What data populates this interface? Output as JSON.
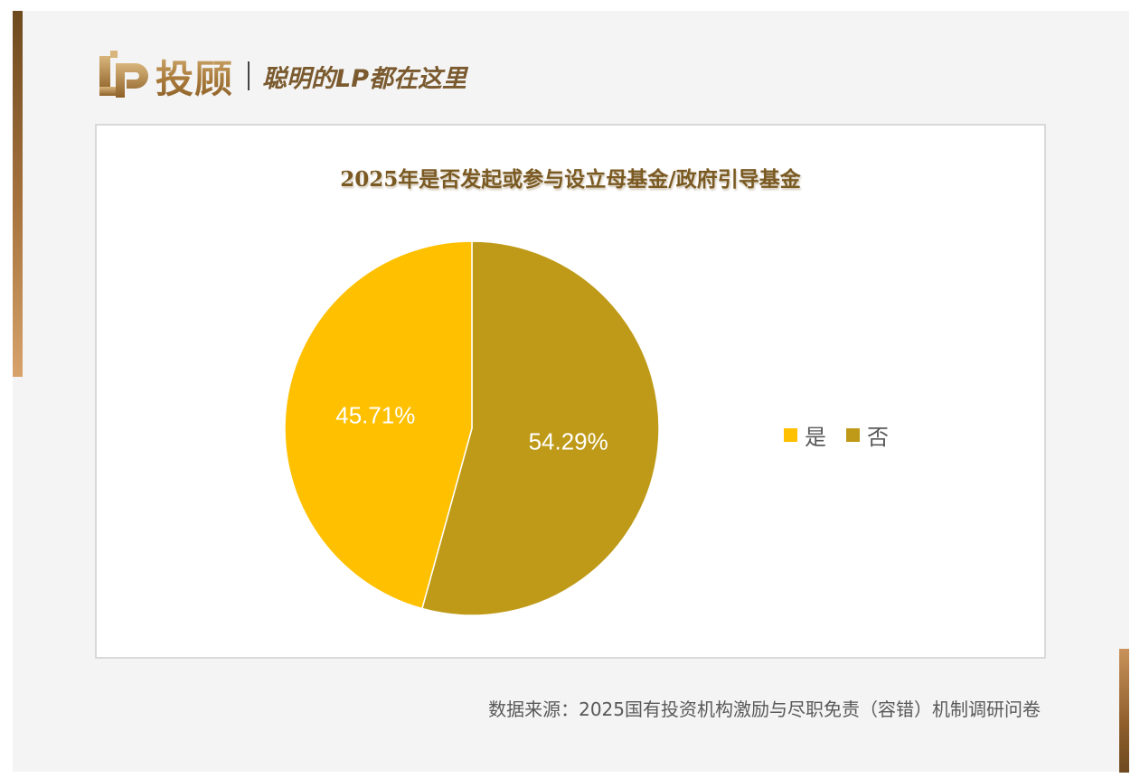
{
  "header": {
    "logo_text": "投顾",
    "slogan": "聪明的LP都在这里"
  },
  "chart_data": {
    "type": "pie",
    "title": "2025年是否发起或参与设立母基金/政府引导基金",
    "categories": [
      "是",
      "否"
    ],
    "values": [
      45.71,
      54.29
    ],
    "labels": [
      "45.71%",
      "54.29%"
    ],
    "colors": [
      "#ffc000",
      "#bf9a18"
    ],
    "legend_position": "right"
  },
  "footer": {
    "source": "数据来源：2025国有投资机构激励与尽职免责（容错）机制调研问卷"
  }
}
